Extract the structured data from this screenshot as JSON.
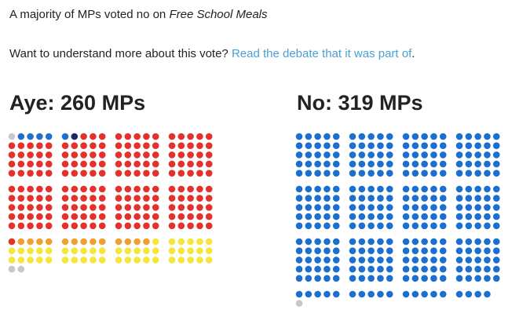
{
  "intro": {
    "text": "A majority of MPs voted no on ",
    "motion": "Free School Meals"
  },
  "prompt": {
    "text": "Want to understand more about this vote? ",
    "link": "Read the debate that it was part of",
    "end": "."
  },
  "aye": {
    "label": "Aye: 260 MPs",
    "dots": [
      {
        "color": "#c8c8c8",
        "count": 1
      },
      {
        "color": "#1f6fd1",
        "count": 5
      },
      {
        "color": "#1a2a5e",
        "count": 1
      },
      {
        "color": "#e4312b",
        "count": 194
      },
      {
        "color": "#f0a030",
        "count": 13
      },
      {
        "color": "#f5e63c",
        "count": 46
      }
    ],
    "extra": [
      {
        "color": "#c8c8c8",
        "count": 2
      }
    ]
  },
  "no": {
    "label": "No: 319 MPs",
    "dots": [
      {
        "color": "#1b6fd0",
        "count": 319
      }
    ],
    "extra": [
      {
        "color": "#c8c8c8",
        "count": 1
      }
    ]
  }
}
